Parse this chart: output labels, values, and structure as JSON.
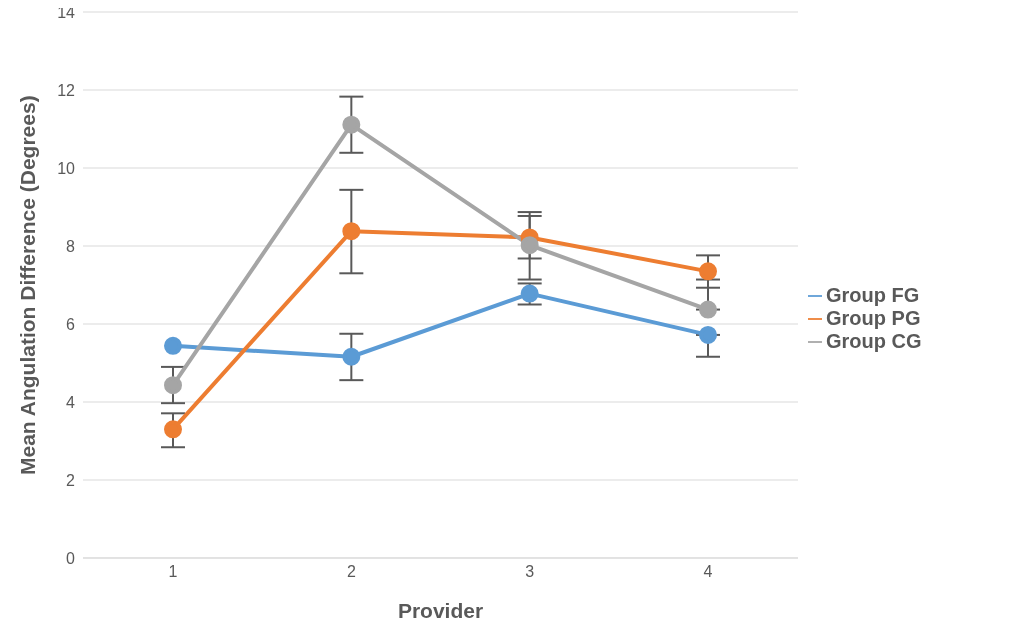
{
  "chart_data": {
    "type": "line",
    "xlabel": "Provider",
    "ylabel": "Mean Angulation Difference (Degrees)",
    "categories": [
      "1",
      "2",
      "3",
      "4"
    ],
    "ylim": [
      0,
      14
    ],
    "yticks": [
      0,
      2,
      4,
      6,
      8,
      10,
      12,
      14
    ],
    "grid": "y",
    "legend": "right",
    "marker": "circle",
    "series": [
      {
        "name": "Group FG",
        "color": "#5b9bd5",
        "values": [
          5.44,
          5.16,
          6.78,
          5.72
        ],
        "errors": [
          null,
          [
            4.56,
            5.75
          ],
          [
            6.5,
            7.04
          ],
          [
            5.16,
            5.72
          ]
        ]
      },
      {
        "name": "Group PG",
        "color": "#ed7d31",
        "values": [
          3.3,
          8.38,
          8.22,
          7.35
        ],
        "errors": [
          [
            2.84,
            3.71
          ],
          [
            7.3,
            9.44
          ],
          [
            7.68,
            8.87
          ],
          [
            6.93,
            7.76
          ]
        ]
      },
      {
        "name": "Group CG",
        "color": "#a5a5a5",
        "values": [
          4.43,
          11.11,
          8.02,
          6.37
        ],
        "errors": [
          [
            3.97,
            4.9
          ],
          [
            10.39,
            11.83
          ],
          [
            7.14,
            8.77
          ],
          [
            6.37,
            7.14
          ]
        ]
      }
    ]
  }
}
